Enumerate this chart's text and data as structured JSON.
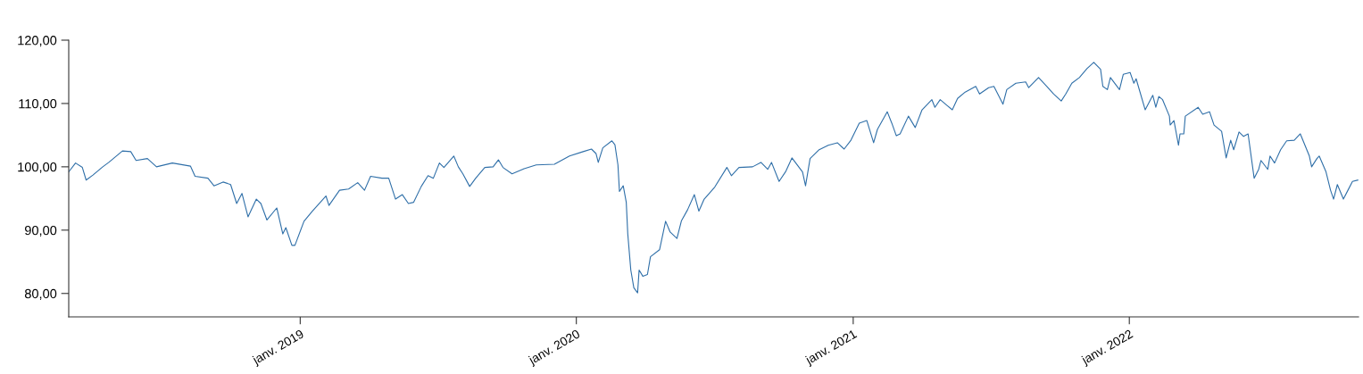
{
  "chart_data": {
    "type": "line",
    "x": [
      "2018-03-01",
      "2018-03-10",
      "2018-03-19",
      "2018-03-24",
      "2018-04-02",
      "2018-04-15",
      "2018-04-23",
      "2018-05-11",
      "2018-05-22",
      "2018-05-29",
      "2018-06-13",
      "2018-06-25",
      "2018-07-16",
      "2018-08-09",
      "2018-08-15",
      "2018-09-01",
      "2018-09-09",
      "2018-09-21",
      "2018-10-01",
      "2018-10-09",
      "2018-10-16",
      "2018-10-24",
      "2018-11-04",
      "2018-11-10",
      "2018-11-18",
      "2018-12-01",
      "2018-12-09",
      "2018-12-13",
      "2018-12-21",
      "2018-12-25",
      "2019-01-06",
      "2019-01-17",
      "2019-01-26",
      "2019-02-04",
      "2019-02-08",
      "2019-02-22",
      "2019-03-06",
      "2019-03-18",
      "2019-03-27",
      "2019-04-04",
      "2019-04-19",
      "2019-04-28",
      "2019-05-07",
      "2019-05-16",
      "2019-05-24",
      "2019-05-31",
      "2019-06-10",
      "2019-06-19",
      "2019-06-26",
      "2019-07-04",
      "2019-07-10",
      "2019-07-23",
      "2019-07-29",
      "2019-08-04",
      "2019-08-13",
      "2019-08-21",
      "2019-09-02",
      "2019-09-13",
      "2019-09-20",
      "2019-09-26",
      "2019-10-08",
      "2019-10-24",
      "2019-11-09",
      "2019-12-03",
      "2019-12-23",
      "2020-01-10",
      "2020-01-21",
      "2020-01-27",
      "2020-01-30",
      "2020-02-05",
      "2020-02-17",
      "2020-02-21",
      "2020-02-25",
      "2020-02-27",
      "2020-03-03",
      "2020-03-07",
      "2020-03-09",
      "2020-03-13",
      "2020-03-17",
      "2020-03-22",
      "2020-03-24",
      "2020-03-29",
      "2020-04-04",
      "2020-04-08",
      "2020-04-20",
      "2020-04-28",
      "2020-05-04",
      "2020-05-13",
      "2020-05-19",
      "2020-05-27",
      "2020-06-05",
      "2020-06-11",
      "2020-06-18",
      "2020-07-02",
      "2020-07-18",
      "2020-07-24",
      "2020-08-03",
      "2020-08-21",
      "2020-09-01",
      "2020-09-10",
      "2020-09-15",
      "2020-09-25",
      "2020-10-04",
      "2020-10-12",
      "2020-10-26",
      "2020-10-30",
      "2020-11-05",
      "2020-11-17",
      "2020-11-29",
      "2020-12-11",
      "2020-12-20",
      "2020-12-29",
      "2021-01-09",
      "2021-01-19",
      "2021-01-28",
      "2021-02-02",
      "2021-02-15",
      "2021-02-21",
      "2021-02-27",
      "2021-03-04",
      "2021-03-15",
      "2021-03-24",
      "2021-04-02",
      "2021-04-15",
      "2021-04-19",
      "2021-04-26",
      "2021-05-05",
      "2021-05-12",
      "2021-05-19",
      "2021-05-29",
      "2021-06-12",
      "2021-06-17",
      "2021-06-29",
      "2021-07-06",
      "2021-07-18",
      "2021-07-23",
      "2021-08-04",
      "2021-08-17",
      "2021-08-21",
      "2021-09-03",
      "2021-09-14",
      "2021-09-23",
      "2021-10-03",
      "2021-10-09",
      "2021-10-17",
      "2021-10-27",
      "2021-11-06",
      "2021-11-15",
      "2021-11-24",
      "2021-11-27",
      "2021-12-03",
      "2021-12-07",
      "2021-12-19",
      "2021-12-24",
      "2022-01-02",
      "2022-01-07",
      "2022-01-10",
      "2022-01-22",
      "2022-02-01",
      "2022-02-05",
      "2022-02-09",
      "2022-02-14",
      "2022-02-23",
      "2022-02-24",
      "2022-03-01",
      "2022-03-07",
      "2022-03-09",
      "2022-03-14",
      "2022-03-16",
      "2022-04-02",
      "2022-04-08",
      "2022-04-17",
      "2022-04-23",
      "2022-05-03",
      "2022-05-09",
      "2022-05-15",
      "2022-05-19",
      "2022-05-26",
      "2022-06-01",
      "2022-06-07",
      "2022-06-15",
      "2022-06-21",
      "2022-06-24",
      "2022-07-03",
      "2022-07-06",
      "2022-07-12",
      "2022-07-20",
      "2022-07-28",
      "2022-08-07",
      "2022-08-15",
      "2022-08-27",
      "2022-08-30",
      "2022-09-06",
      "2022-09-09",
      "2022-09-18",
      "2022-09-24",
      "2022-09-28",
      "2022-10-03",
      "2022-10-11",
      "2022-10-17",
      "2022-10-23",
      "2022-10-30"
    ],
    "series": [
      {
        "color": "#2f6fa8",
        "values": [
          99.2,
          100.6,
          99.9,
          97.9,
          98.7,
          100.0,
          100.7,
          102.5,
          102.4,
          101.0,
          101.3,
          100.0,
          100.6,
          100.1,
          98.5,
          98.2,
          97.0,
          97.6,
          97.2,
          94.2,
          95.8,
          92.1,
          94.9,
          94.2,
          91.6,
          93.5,
          89.4,
          90.4,
          87.6,
          87.6,
          91.4,
          93.0,
          94.2,
          95.4,
          93.9,
          96.3,
          96.5,
          97.5,
          96.3,
          98.5,
          98.2,
          98.2,
          94.9,
          95.6,
          94.2,
          94.4,
          96.9,
          98.6,
          98.2,
          100.6,
          99.9,
          101.7,
          100.0,
          98.9,
          96.9,
          98.2,
          99.9,
          100.0,
          101.1,
          99.9,
          98.9,
          99.7,
          100.3,
          100.4,
          101.7,
          102.4,
          102.8,
          102.1,
          100.7,
          103.0,
          104.1,
          103.5,
          100.3,
          96.1,
          97.0,
          94.4,
          89.4,
          83.7,
          80.9,
          80.1,
          83.7,
          82.7,
          83.0,
          85.8,
          86.9,
          91.4,
          89.7,
          88.7,
          91.5,
          93.2,
          95.6,
          93.0,
          94.9,
          96.8,
          99.9,
          98.6,
          99.9,
          100.0,
          100.7,
          99.6,
          100.7,
          97.7,
          99.3,
          101.4,
          99.2,
          97.0,
          101.3,
          102.7,
          103.4,
          103.8,
          102.8,
          104.2,
          106.9,
          107.3,
          103.8,
          105.9,
          108.7,
          106.9,
          104.9,
          105.2,
          108.0,
          106.2,
          109.0,
          110.6,
          109.4,
          110.6,
          109.7,
          109.0,
          110.8,
          111.8,
          112.7,
          111.5,
          112.5,
          112.7,
          109.9,
          112.2,
          113.2,
          113.4,
          112.5,
          114.1,
          112.7,
          111.5,
          110.4,
          111.5,
          113.2,
          114.1,
          115.5,
          116.5,
          115.4,
          112.7,
          112.2,
          114.1,
          112.2,
          114.6,
          114.9,
          113.2,
          113.9,
          109.0,
          111.3,
          109.4,
          111.1,
          110.6,
          108.0,
          106.6,
          107.3,
          103.4,
          105.2,
          105.2,
          108.0,
          109.4,
          108.3,
          108.7,
          106.6,
          105.6,
          101.4,
          104.2,
          102.7,
          105.5,
          104.8,
          105.2,
          98.2,
          99.6,
          101.0,
          99.6,
          101.7,
          100.6,
          102.7,
          104.1,
          104.2,
          105.2,
          101.7,
          100.0,
          101.3,
          101.7,
          99.2,
          96.3,
          94.9,
          97.2,
          94.9,
          96.3,
          97.7,
          97.9
        ]
      }
    ],
    "xlim": [
      "2018-03-01",
      "2022-10-31"
    ],
    "xticks": [
      {
        "value": "2019-01-01",
        "label": "janv. 2019"
      },
      {
        "value": "2020-01-01",
        "label": "janv. 2020"
      },
      {
        "value": "2021-01-01",
        "label": "janv. 2021"
      },
      {
        "value": "2022-01-01",
        "label": "janv. 2022"
      }
    ],
    "ylim": [
      76.3,
      120
    ],
    "yticks": [
      {
        "value": 80,
        "label": "80,00"
      },
      {
        "value": 90,
        "label": "90,00"
      },
      {
        "value": 100,
        "label": "100,00"
      },
      {
        "value": 110,
        "label": "110,00"
      },
      {
        "value": 120,
        "label": "120,00"
      }
    ],
    "grid": false
  }
}
